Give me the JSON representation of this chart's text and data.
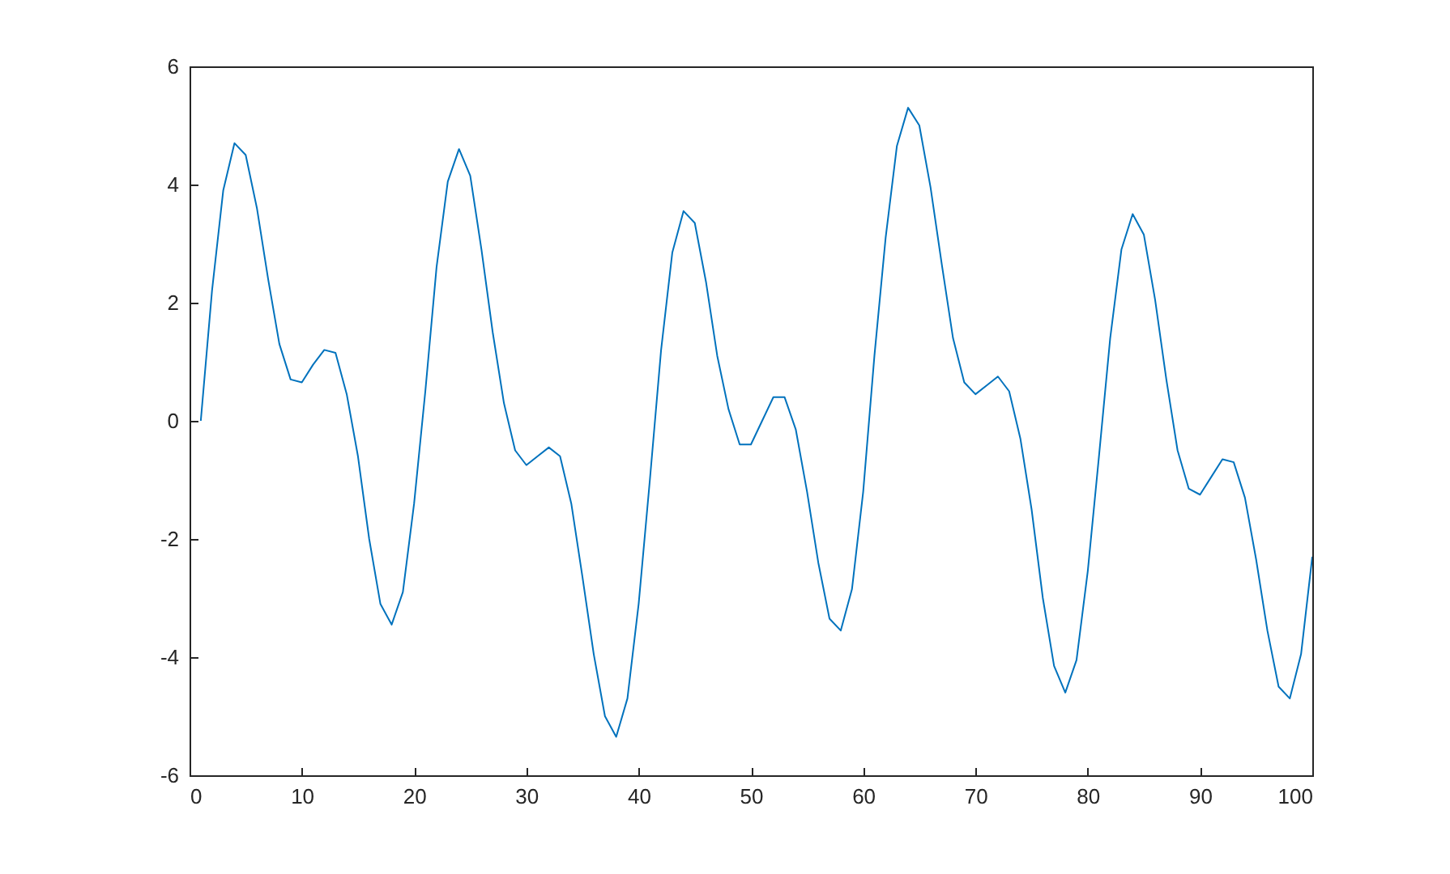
{
  "chart_data": {
    "type": "line",
    "x": [
      1,
      2,
      3,
      4,
      5,
      6,
      7,
      8,
      9,
      10,
      11,
      12,
      13,
      14,
      15,
      16,
      17,
      18,
      19,
      20,
      21,
      22,
      23,
      24,
      25,
      26,
      27,
      28,
      29,
      30,
      31,
      32,
      33,
      34,
      35,
      36,
      37,
      38,
      39,
      40,
      41,
      42,
      43,
      44,
      45,
      46,
      47,
      48,
      49,
      50,
      51,
      52,
      53,
      54,
      55,
      56,
      57,
      58,
      59,
      60,
      61,
      62,
      63,
      64,
      65,
      66,
      67,
      68,
      69,
      70,
      71,
      72,
      73,
      74,
      75,
      76,
      77,
      78,
      79,
      80,
      81,
      82,
      83,
      84,
      85,
      86,
      87,
      88,
      89,
      90,
      91,
      92,
      93,
      94,
      95,
      96,
      97,
      98,
      99,
      100
    ],
    "series": [
      {
        "color": "#0072bd",
        "values": [
          0.0,
          2.2,
          3.9,
          4.7,
          4.5,
          3.6,
          2.4,
          1.3,
          0.7,
          0.65,
          0.95,
          1.2,
          1.15,
          0.45,
          -0.6,
          -2.0,
          -3.1,
          -3.45,
          -2.9,
          -1.4,
          0.5,
          2.6,
          4.05,
          4.6,
          4.15,
          2.9,
          1.5,
          0.3,
          -0.5,
          -0.75,
          -0.6,
          -0.45,
          -0.6,
          -1.4,
          -2.65,
          -3.95,
          -5.0,
          -5.35,
          -4.7,
          -3.1,
          -1.0,
          1.2,
          2.85,
          3.55,
          3.35,
          2.35,
          1.1,
          0.2,
          -0.4,
          -0.4,
          0.0,
          0.4,
          0.4,
          -0.15,
          -1.2,
          -2.4,
          -3.35,
          -3.55,
          -2.85,
          -1.2,
          1.1,
          3.1,
          4.65,
          5.3,
          5.0,
          3.95,
          2.65,
          1.4,
          0.65,
          0.45,
          0.6,
          0.75,
          0.5,
          -0.3,
          -1.5,
          -3.0,
          -4.15,
          -4.6,
          -4.05,
          -2.55,
          -0.6,
          1.4,
          2.9,
          3.5,
          3.15,
          2.05,
          0.7,
          -0.5,
          -1.15,
          -1.25,
          -0.95,
          -0.65,
          -0.7,
          -1.3,
          -2.35,
          -3.55,
          -4.5,
          -4.7,
          -3.95,
          -2.3
        ]
      }
    ],
    "xlim": [
      0,
      100
    ],
    "ylim": [
      -6,
      6
    ],
    "xticks": [
      0,
      10,
      20,
      30,
      40,
      50,
      60,
      70,
      80,
      90,
      100
    ],
    "yticks": [
      -6,
      -4,
      -2,
      0,
      2,
      4,
      6
    ],
    "grid": false,
    "legend": false,
    "line_style": "solid"
  }
}
